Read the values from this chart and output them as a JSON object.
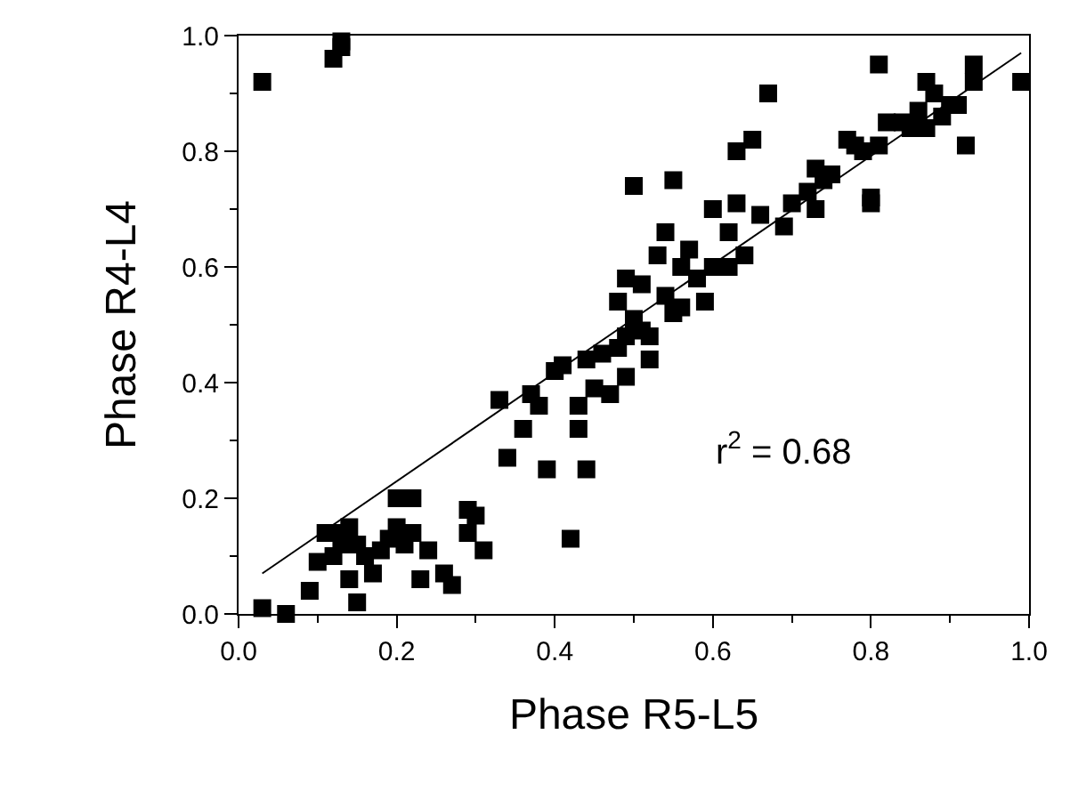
{
  "chart_data": {
    "type": "scatter",
    "xlabel": "Phase R5-L5",
    "ylabel": "Phase R4-L4",
    "grid": false,
    "xlim": [
      0,
      1
    ],
    "ylim": [
      0,
      1
    ],
    "xticks": [
      {
        "value": 0,
        "label": "0.0"
      },
      {
        "value": 0.1,
        "label": null
      },
      {
        "value": 0.2,
        "label": "0.2"
      },
      {
        "value": 0.3,
        "label": null
      },
      {
        "value": 0.4,
        "label": "0.4"
      },
      {
        "value": 0.5,
        "label": null
      },
      {
        "value": 0.6,
        "label": "0.6"
      },
      {
        "value": 0.7,
        "label": null
      },
      {
        "value": 0.8,
        "label": "0.8"
      },
      {
        "value": 0.9,
        "label": null
      },
      {
        "value": 1,
        "label": "1.0"
      }
    ],
    "yticks": [
      {
        "value": 0,
        "label": "0.0"
      },
      {
        "value": 0.1,
        "label": null
      },
      {
        "value": 0.2,
        "label": "0.2"
      },
      {
        "value": 0.3,
        "label": null
      },
      {
        "value": 0.4,
        "label": "0.4"
      },
      {
        "value": 0.5,
        "label": null
      },
      {
        "value": 0.6,
        "label": "0.6"
      },
      {
        "value": 0.7,
        "label": null
      },
      {
        "value": 0.8,
        "label": "0.8"
      },
      {
        "value": 0.9,
        "label": null
      },
      {
        "value": 1,
        "label": "1.0"
      }
    ],
    "annotations": [
      "r$^{2}$ = 0.68"
    ],
    "series": [
      {
        "marker": "square",
        "color": "#000000",
        "x": [
          0.03,
          0.12,
          0.13,
          0.13,
          0.03,
          0.06,
          0.09,
          0.1,
          0.11,
          0.12,
          0.12,
          0.13,
          0.14,
          0.14,
          0.15,
          0.15,
          0.16,
          0.17,
          0.18,
          0.19,
          0.2,
          0.2,
          0.21,
          0.22,
          0.22,
          0.23,
          0.24,
          0.26,
          0.27,
          0.29,
          0.29,
          0.3,
          0.31,
          0.33,
          0.34,
          0.36,
          0.37,
          0.38,
          0.39,
          0.4,
          0.41,
          0.42,
          0.43,
          0.43,
          0.44,
          0.44,
          0.45,
          0.46,
          0.47,
          0.48,
          0.48,
          0.49,
          0.49,
          0.49,
          0.5,
          0.5,
          0.51,
          0.51,
          0.52,
          0.52,
          0.53,
          0.54,
          0.54,
          0.55,
          0.55,
          0.56,
          0.56,
          0.57,
          0.58,
          0.59,
          0.6,
          0.6,
          0.62,
          0.62,
          0.63,
          0.63,
          0.64,
          0.65,
          0.66,
          0.67,
          0.69,
          0.7,
          0.72,
          0.73,
          0.73,
          0.74,
          0.75,
          0.77,
          0.78,
          0.79,
          0.8,
          0.8,
          0.81,
          0.81,
          0.82,
          0.84,
          0.85,
          0.86,
          0.87,
          0.87,
          0.88,
          0.89,
          0.9,
          0.91,
          0.92,
          0.93,
          0.93,
          0.99
        ],
        "values": [
          0.92,
          0.96,
          0.98,
          0.99,
          0.01,
          0.0,
          0.04,
          0.09,
          0.14,
          0.1,
          0.14,
          0.12,
          0.15,
          0.06,
          0.12,
          0.02,
          0.1,
          0.07,
          0.11,
          0.13,
          0.2,
          0.15,
          0.12,
          0.2,
          0.14,
          0.06,
          0.11,
          0.07,
          0.05,
          0.14,
          0.18,
          0.17,
          0.11,
          0.37,
          0.27,
          0.32,
          0.38,
          0.36,
          0.25,
          0.42,
          0.43,
          0.13,
          0.32,
          0.36,
          0.25,
          0.44,
          0.39,
          0.45,
          0.38,
          0.46,
          0.54,
          0.58,
          0.41,
          0.48,
          0.51,
          0.74,
          0.49,
          0.57,
          0.48,
          0.44,
          0.62,
          0.55,
          0.66,
          0.52,
          0.75,
          0.6,
          0.53,
          0.63,
          0.58,
          0.54,
          0.7,
          0.6,
          0.6,
          0.66,
          0.8,
          0.71,
          0.62,
          0.82,
          0.69,
          0.9,
          0.67,
          0.71,
          0.73,
          0.77,
          0.7,
          0.75,
          0.76,
          0.82,
          0.81,
          0.8,
          0.72,
          0.71,
          0.95,
          0.81,
          0.85,
          0.85,
          0.84,
          0.87,
          0.92,
          0.84,
          0.9,
          0.86,
          0.88,
          0.88,
          0.81,
          0.95,
          0.92,
          0.92
        ]
      },
      {
        "type": "line",
        "marker": "none",
        "color": "#000000",
        "x": [
          0.03,
          0.99
        ],
        "values": [
          0.07,
          0.97
        ]
      }
    ]
  }
}
